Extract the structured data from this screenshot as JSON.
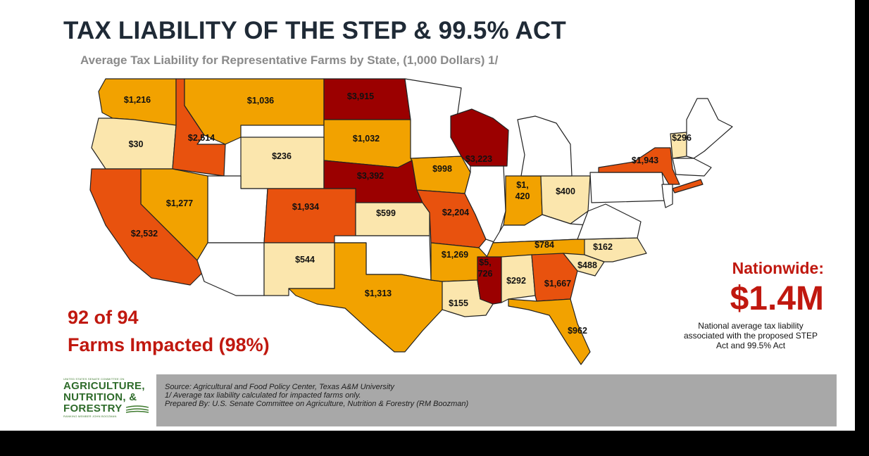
{
  "title": "TAX LIABILITY OF THE STEP & 99.5% ACT",
  "subtitle": "Average Tax Liability for Representative Farms by State, (1,000 Dollars) 1/",
  "colors": {
    "dark_red": "#9b0000",
    "orange_red": "#e8520e",
    "orange": "#f2a200",
    "cream": "#fbe6ad",
    "none": "#ffffff",
    "accent": "#c0180f"
  },
  "states": [
    {
      "state": "WA",
      "value": "$1,216",
      "color": "orange"
    },
    {
      "state": "OR",
      "value": "$30",
      "color": "cream"
    },
    {
      "state": "ID",
      "value": "$2,514",
      "color": "orange_red"
    },
    {
      "state": "MT",
      "value": "$1,036",
      "color": "orange"
    },
    {
      "state": "ND",
      "value": "$3,915",
      "color": "dark_red"
    },
    {
      "state": "SD",
      "value": "$1,032",
      "color": "orange"
    },
    {
      "state": "WY",
      "value": "$236",
      "color": "cream"
    },
    {
      "state": "NE",
      "value": "$3,392",
      "color": "dark_red"
    },
    {
      "state": "CA",
      "value": "$2,532",
      "color": "orange_red"
    },
    {
      "state": "NV",
      "value": "$1,277",
      "color": "orange"
    },
    {
      "state": "CO",
      "value": "$1,934",
      "color": "orange_red"
    },
    {
      "state": "KS",
      "value": "$599",
      "color": "cream"
    },
    {
      "state": "NM",
      "value": "$544",
      "color": "cream"
    },
    {
      "state": "TX",
      "value": "$1,313",
      "color": "orange"
    },
    {
      "state": "IA",
      "value": "$998",
      "color": "orange"
    },
    {
      "state": "MO",
      "value": "$2,204",
      "color": "orange_red"
    },
    {
      "state": "WI",
      "value": "$3,223",
      "color": "dark_red"
    },
    {
      "state": "IN",
      "value_line1": "$1,",
      "value_line2": "420",
      "color": "orange"
    },
    {
      "state": "OH",
      "value": "$400",
      "color": "cream"
    },
    {
      "state": "AR",
      "value": "$1,269",
      "color": "orange"
    },
    {
      "state": "LA",
      "value": "$155",
      "color": "cream"
    },
    {
      "state": "MS",
      "value_line1": "$5,",
      "value_line2": "726",
      "color": "dark_red"
    },
    {
      "state": "AL",
      "value": "$292",
      "color": "cream"
    },
    {
      "state": "GA",
      "value": "$1,667",
      "color": "orange_red"
    },
    {
      "state": "FL",
      "value": "$962",
      "color": "orange"
    },
    {
      "state": "TN",
      "value": "$784",
      "color": "orange"
    },
    {
      "state": "NC",
      "value": "$162",
      "color": "cream"
    },
    {
      "state": "SC",
      "value": "$488",
      "color": "cream"
    },
    {
      "state": "NY",
      "value": "$1,943",
      "color": "orange_red"
    },
    {
      "state": "VT",
      "value": "$296",
      "color": "cream"
    }
  ],
  "farms_impacted": {
    "line1": "92 of 94",
    "line2": "Farms Impacted (98%)"
  },
  "nationwide": {
    "label": "Nationwide:",
    "value": "$1.4M",
    "description": "National average tax liability associated with the proposed STEP Act and 99.5% Act"
  },
  "footer": {
    "source": "Source: Agricultural and Food Policy Center, Texas A&M University",
    "note": "1/ Average tax liability calculated for impacted farms only.",
    "prepared_by": "Prepared By: U.S. Senate Committee on Agriculture, Nutrition & Forestry (RM Boozman)"
  },
  "logo": {
    "top_text": "UNITED STATES SENATE COMMITTEE ON",
    "line1": "AGRICULTURE,",
    "line2": "NUTRITION, &",
    "line3": "FORESTRY",
    "bottom_text": "RANKING MEMBER JOHN BOOZMAN"
  }
}
